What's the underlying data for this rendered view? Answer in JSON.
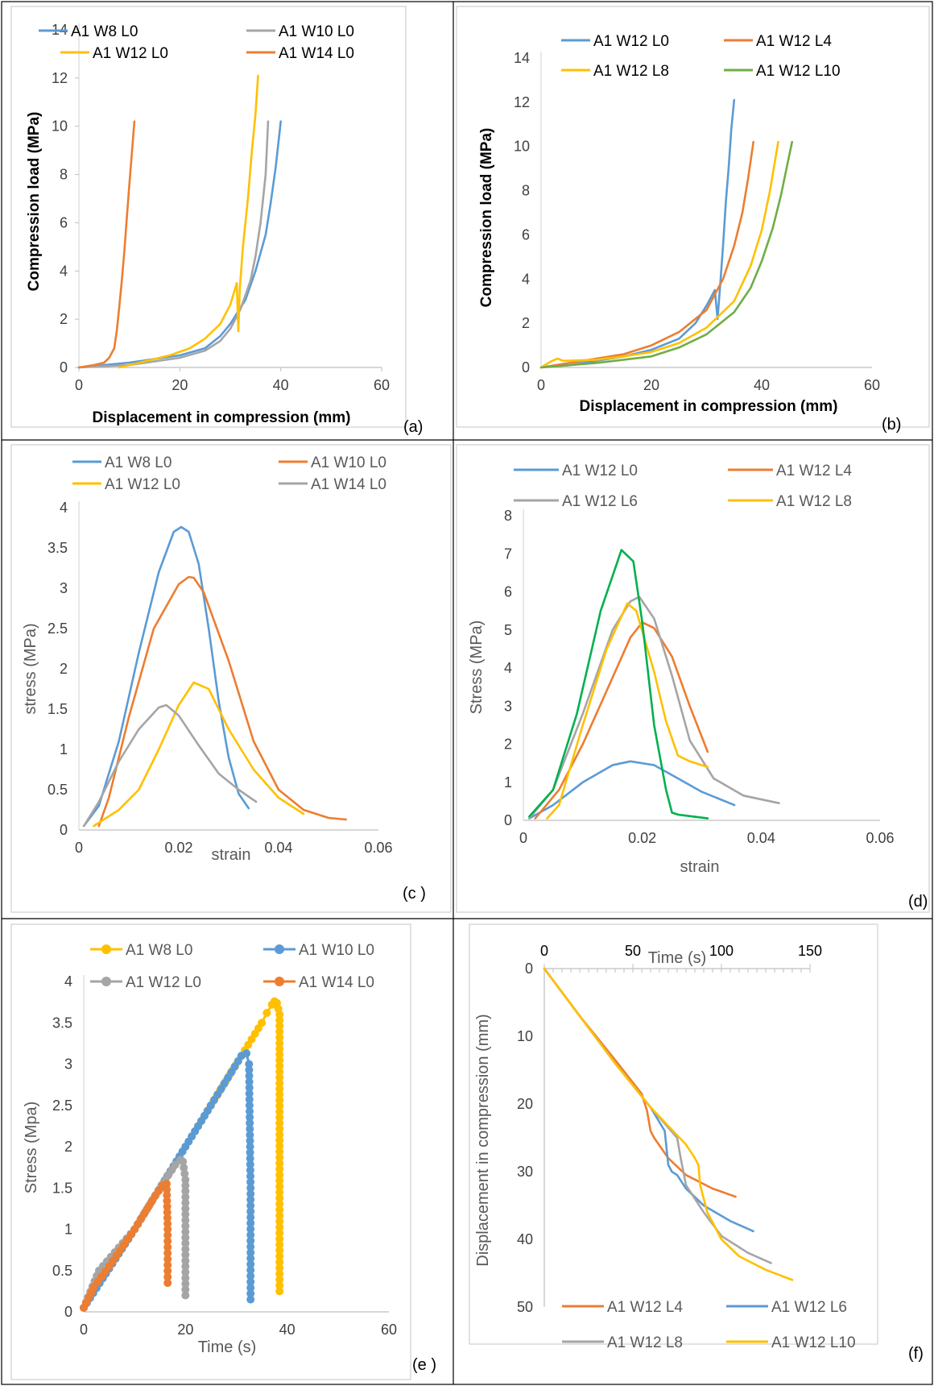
{
  "colors": {
    "blue": "#5B9BD5",
    "orange": "#ED7D31",
    "gray": "#A5A5A5",
    "yellow": "#FFC000",
    "green": "#70AD47",
    "brightgreen": "#00B050"
  },
  "chart_data": [
    {
      "id": "a",
      "type": "line",
      "panel_label": "(a)",
      "xlabel": "Displacement in compression (mm)",
      "ylabel": "Compression load (MPa)",
      "xlim": [
        0,
        60
      ],
      "ylim": [
        0,
        14
      ],
      "xticks": [
        "0",
        "20",
        "40",
        "60"
      ],
      "yticks": [
        "0",
        "2",
        "4",
        "6",
        "8",
        "10",
        "12",
        "14"
      ],
      "series": [
        {
          "name": "A1 W8 L0",
          "color": "blue",
          "x": [
            0,
            10,
            20,
            25,
            28,
            30,
            33,
            35,
            37,
            38,
            39,
            40
          ],
          "y": [
            0,
            0.2,
            0.5,
            0.8,
            1.3,
            1.8,
            2.8,
            4,
            5.5,
            6.8,
            8.3,
            10.2
          ]
        },
        {
          "name": "A1 W10 L0",
          "color": "gray",
          "x": [
            0,
            10,
            20,
            25,
            28,
            30,
            32,
            34,
            35,
            36,
            37,
            37.5
          ],
          "y": [
            0,
            0.1,
            0.4,
            0.7,
            1.1,
            1.6,
            2.4,
            3.6,
            4.6,
            6,
            8,
            10.2
          ]
        },
        {
          "name": "A1 W12 L0",
          "color": "yellow",
          "x": [
            8,
            12,
            18,
            22,
            25,
            28,
            30,
            31.3,
            31.6,
            31.9,
            32.5,
            33.5,
            34.3,
            35,
            35.5
          ],
          "y": [
            0,
            0.2,
            0.5,
            0.8,
            1.2,
            1.8,
            2.6,
            3.5,
            1.5,
            3.3,
            5,
            7,
            9,
            10.5,
            12.1
          ]
        },
        {
          "name": "A1 W14 L0",
          "color": "orange",
          "x": [
            0,
            3,
            5,
            6,
            7,
            7.5,
            8,
            8.5,
            9,
            9.5,
            10,
            10.5,
            11
          ],
          "y": [
            0,
            0.1,
            0.2,
            0.4,
            0.8,
            1.5,
            2.5,
            3.6,
            4.8,
            6.2,
            7.6,
            8.9,
            10.2
          ]
        }
      ]
    },
    {
      "id": "b",
      "type": "line",
      "panel_label": "(b)",
      "xlabel": "Displacement in compression (mm)",
      "ylabel": "Compression load (MPa)",
      "xlim": [
        0,
        60
      ],
      "ylim": [
        0,
        14
      ],
      "xticks": [
        "0",
        "20",
        "40",
        "60"
      ],
      "yticks": [
        "0",
        "2",
        "4",
        "6",
        "8",
        "10",
        "12",
        "14"
      ],
      "series": [
        {
          "name": "A1 W12 L0",
          "color": "blue",
          "x": [
            0,
            5,
            10,
            15,
            20,
            25,
            28,
            30,
            31.5,
            32,
            32.5,
            33,
            33.5,
            34,
            34.5,
            35
          ],
          "y": [
            0,
            0.1,
            0.3,
            0.5,
            0.8,
            1.3,
            2,
            2.8,
            3.5,
            2.2,
            3.8,
            5.5,
            7.5,
            9,
            10.8,
            12.1
          ]
        },
        {
          "name": "A1 W12 L4",
          "color": "orange",
          "x": [
            0,
            5,
            10,
            15,
            20,
            25,
            30,
            33,
            35,
            36.5,
            37.5,
            38.5
          ],
          "y": [
            0,
            0.2,
            0.4,
            0.6,
            1,
            1.6,
            2.6,
            4,
            5.5,
            7,
            8.5,
            10.2
          ]
        },
        {
          "name": "A1 W12 L8",
          "color": "yellow",
          "x": [
            0,
            2,
            3,
            4,
            10,
            15,
            20,
            25,
            30,
            35,
            38,
            40,
            41.5,
            43
          ],
          "y": [
            0,
            0.3,
            0.4,
            0.3,
            0.35,
            0.5,
            0.7,
            1.1,
            1.8,
            3,
            4.6,
            6.2,
            8,
            10.2
          ]
        },
        {
          "name": "A1 W12 L10",
          "color": "green",
          "x": [
            0,
            10,
            20,
            25,
            30,
            35,
            38,
            40,
            42,
            43.5,
            44.5,
            45.5
          ],
          "y": [
            0,
            0.2,
            0.5,
            0.9,
            1.5,
            2.5,
            3.6,
            4.8,
            6.3,
            7.8,
            9,
            10.2
          ]
        }
      ]
    },
    {
      "id": "c",
      "type": "line",
      "panel_label": "(c )",
      "xlabel": "strain",
      "ylabel": "stress (MPa)",
      "xlim": [
        0,
        0.06
      ],
      "ylim": [
        0,
        4
      ],
      "xticks": [
        "0",
        "0.02",
        "0.04",
        "0.06"
      ],
      "yticks": [
        "0",
        "0.5",
        "1",
        "1.5",
        "2",
        "2.5",
        "3",
        "3.5",
        "4"
      ],
      "series": [
        {
          "name": "A1 W8 L0",
          "color": "blue",
          "x": [
            0.001,
            0.004,
            0.008,
            0.012,
            0.016,
            0.019,
            0.0205,
            0.022,
            0.024,
            0.026,
            0.028,
            0.03,
            0.032,
            0.034
          ],
          "y": [
            0.05,
            0.3,
            1.1,
            2.2,
            3.2,
            3.7,
            3.76,
            3.7,
            3.3,
            2.5,
            1.6,
            0.9,
            0.45,
            0.27
          ]
        },
        {
          "name": "A1 W10 L0",
          "color": "orange",
          "x": [
            0.004,
            0.006,
            0.01,
            0.015,
            0.02,
            0.022,
            0.023,
            0.025,
            0.03,
            0.035,
            0.04,
            0.045,
            0.05,
            0.0535
          ],
          "y": [
            0.05,
            0.4,
            1.4,
            2.5,
            3.05,
            3.14,
            3.13,
            2.95,
            2.1,
            1.1,
            0.5,
            0.25,
            0.15,
            0.13
          ]
        },
        {
          "name": "A1 W12 L0",
          "color": "yellow",
          "x": [
            0.003,
            0.008,
            0.012,
            0.016,
            0.02,
            0.023,
            0.026,
            0.03,
            0.035,
            0.04,
            0.045
          ],
          "y": [
            0.05,
            0.25,
            0.5,
            1,
            1.55,
            1.83,
            1.75,
            1.25,
            0.75,
            0.4,
            0.2
          ]
        },
        {
          "name": "A1 W14 L0",
          "color": "gray",
          "x": [
            0.001,
            0.004,
            0.008,
            0.012,
            0.016,
            0.0175,
            0.02,
            0.024,
            0.028,
            0.032,
            0.0355
          ],
          "y": [
            0.05,
            0.35,
            0.85,
            1.25,
            1.52,
            1.55,
            1.42,
            1.05,
            0.7,
            0.5,
            0.35
          ]
        }
      ]
    },
    {
      "id": "d",
      "type": "line",
      "panel_label": "(d)",
      "xlabel": "strain",
      "ylabel": "Stress (MPa)",
      "xlim": [
        0,
        0.06
      ],
      "ylim": [
        0,
        8
      ],
      "xticks": [
        "0",
        "0.02",
        "0.04",
        "0.06"
      ],
      "yticks": [
        "0",
        "1",
        "2",
        "3",
        "4",
        "5",
        "6",
        "7",
        "8"
      ],
      "series": [
        {
          "name": "A1 W12 L0",
          "color": "blue",
          "x": [
            0.001,
            0.005,
            0.01,
            0.015,
            0.018,
            0.022,
            0.026,
            0.03,
            0.0355
          ],
          "y": [
            0.05,
            0.4,
            1,
            1.45,
            1.55,
            1.45,
            1.1,
            0.75,
            0.4
          ]
        },
        {
          "name": "A1 W12 L4",
          "color": "orange",
          "x": [
            0.002,
            0.006,
            0.01,
            0.014,
            0.018,
            0.02,
            0.022,
            0.025,
            0.028,
            0.031
          ],
          "y": [
            0.05,
            0.8,
            2,
            3.4,
            4.8,
            5.2,
            5.05,
            4.3,
            3,
            1.8
          ]
        },
        {
          "name": "A1 W12 L6",
          "color": "gray",
          "x": [
            0.001,
            0.005,
            0.01,
            0.015,
            0.018,
            0.0195,
            0.022,
            0.025,
            0.028,
            0.032,
            0.037,
            0.043
          ],
          "y": [
            0.05,
            0.8,
            2.8,
            5,
            5.75,
            5.87,
            5.3,
            3.8,
            2.1,
            1.1,
            0.65,
            0.45
          ]
        },
        {
          "name": "A1 W12 L8",
          "color": "yellow",
          "x": [
            0.004,
            0.006,
            0.01,
            0.014,
            0.0175,
            0.019,
            0.022,
            0.024,
            0.026,
            0.028,
            0.031
          ],
          "y": [
            0.05,
            0.4,
            2.5,
            4.5,
            5.7,
            5.5,
            3.9,
            2.6,
            1.7,
            1.55,
            1.4
          ]
        },
        {
          "name": "",
          "color": "brightgreen",
          "x": [
            0.001,
            0.005,
            0.009,
            0.013,
            0.0165,
            0.0185,
            0.02,
            0.022,
            0.024,
            0.025,
            0.026,
            0.031
          ],
          "y": [
            0.1,
            0.8,
            2.8,
            5.5,
            7.1,
            6.8,
            5.2,
            2.5,
            0.8,
            0.2,
            0.15,
            0.05
          ]
        }
      ]
    },
    {
      "id": "e",
      "type": "scatter",
      "panel_label": "(e )",
      "xlabel": "Time (s)",
      "ylabel": "Stress (Mpa)",
      "xlim": [
        0,
        60
      ],
      "ylim": [
        0,
        4
      ],
      "xticks": [
        "0",
        "20",
        "40",
        "60"
      ],
      "yticks": [
        "0",
        "0.5",
        "1",
        "1.5",
        "2",
        "2.5",
        "3",
        "3.5",
        "4"
      ],
      "series": [
        {
          "name": "A1 W8 L0",
          "color": "yellow",
          "x": [
            0,
            10,
            20,
            28,
            31,
            33,
            35,
            36,
            37,
            37.5,
            38,
            38.5,
            38.5,
            38.5
          ],
          "y": [
            0.05,
            1,
            2,
            2.8,
            3.1,
            3.3,
            3.5,
            3.62,
            3.72,
            3.76,
            3.74,
            3.6,
            1.8,
            0.25
          ]
        },
        {
          "name": "A1 W10 L0",
          "color": "blue",
          "x": [
            0,
            10,
            20,
            25,
            29,
            31,
            32,
            32.5,
            32.8,
            32.8
          ],
          "y": [
            0.05,
            1,
            2,
            2.5,
            2.9,
            3.1,
            3.13,
            3.0,
            1.5,
            0.15
          ]
        },
        {
          "name": "A1 W12 L0",
          "color": "gray",
          "x": [
            0,
            3,
            10,
            16,
            18,
            19,
            19.5,
            20,
            20,
            20
          ],
          "y": [
            0.05,
            0.5,
            1,
            1.6,
            1.78,
            1.84,
            1.82,
            1.6,
            0.9,
            0.2
          ]
        },
        {
          "name": "A1 W14 L0",
          "color": "orange",
          "x": [
            0,
            2,
            5,
            10,
            14,
            15.5,
            16.3,
            16.5,
            16.5
          ],
          "y": [
            0.05,
            0.3,
            0.55,
            1,
            1.4,
            1.53,
            1.55,
            1.0,
            0.35
          ]
        }
      ]
    },
    {
      "id": "f",
      "type": "line",
      "panel_label": "(f)",
      "xlabel": "Time (s)",
      "ylabel": "Displacement in compression (mm)",
      "xlim": [
        0,
        150
      ],
      "ylim": [
        0,
        50
      ],
      "xticks": [
        "0",
        "50",
        "100",
        "150"
      ],
      "yticks": [
        "0",
        "10",
        "20",
        "30",
        "40",
        "50"
      ],
      "series": [
        {
          "name": "A1 W12 L4",
          "color": "orange",
          "x": [
            0,
            20,
            40,
            55,
            58,
            60,
            62,
            70,
            80,
            95,
            108
          ],
          "y": [
            0,
            7,
            13.5,
            18.5,
            21,
            24,
            25,
            28,
            30.5,
            32.5,
            33.7
          ]
        },
        {
          "name": "A1 W12 L6",
          "color": "blue",
          "x": [
            0,
            20,
            40,
            60,
            68,
            70,
            72,
            75,
            80,
            90,
            105,
            118
          ],
          "y": [
            0,
            7,
            14,
            20.5,
            24,
            29,
            30,
            30.5,
            32.5,
            35,
            37.3,
            38.8
          ]
        },
        {
          "name": "A1 W12 L8",
          "color": "gray",
          "x": [
            0,
            20,
            40,
            60,
            75,
            77,
            80,
            90,
            100,
            115,
            128
          ],
          "y": [
            0,
            7,
            14,
            20.5,
            25,
            28,
            32,
            36,
            39.5,
            42,
            43.5
          ]
        },
        {
          "name": "A1 W12 L10",
          "color": "yellow",
          "x": [
            0,
            20,
            40,
            60,
            80,
            85,
            87,
            88,
            92,
            100,
            110,
            125,
            140
          ],
          "y": [
            0,
            7,
            14,
            20.5,
            26,
            28,
            29,
            32,
            36,
            40,
            42.5,
            44.5,
            46
          ]
        }
      ]
    }
  ]
}
